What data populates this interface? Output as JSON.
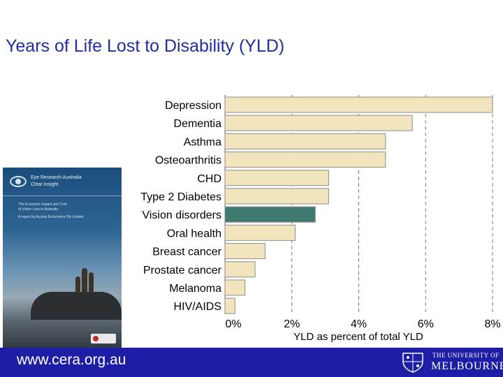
{
  "slide": {
    "title": "Years of Life Lost to Disability (YLD)",
    "footer_url": "www.cera.org.au"
  },
  "report_cover": {
    "brand_line1": "Eye Research Australia",
    "brand_line2": "Clear Insight",
    "heading_line1": "The Economic Impact and Cost",
    "heading_line2": "of Vision Loss in Australia",
    "subheading": "A report by Access Economics Pty Limited",
    "publisher": "ACCESS ECONOMICS"
  },
  "logo": {
    "line1": "THE UNIVERSITY OF",
    "line2": "MELBOURNE"
  },
  "colors": {
    "title": "#1f2f9f",
    "footer": "#1d1ea5",
    "bar_default": "#f2e4bd",
    "bar_highlight": "#3e7a6e",
    "bar_stroke": "#8d8d8d"
  },
  "chart_data": {
    "type": "bar",
    "orientation": "horizontal",
    "categories": [
      "Depression",
      "Dementia",
      "Asthma",
      "Osteoarthritis",
      "CHD",
      "Type 2 Diabetes",
      "Vision disorders",
      "Oral health",
      "Breast cancer",
      "Prostate cancer",
      "Melanoma",
      "HIV/AIDS"
    ],
    "values": [
      8.0,
      5.6,
      4.8,
      4.8,
      3.1,
      3.1,
      2.7,
      2.1,
      1.2,
      0.9,
      0.6,
      0.3
    ],
    "highlight": "Vision disorders",
    "xlabel": "YLD as percent of total YLD",
    "xlim": [
      0,
      8
    ],
    "xticks": [
      "0%",
      "2%",
      "4%",
      "6%",
      "8%"
    ],
    "grid": "vertical dashed"
  }
}
